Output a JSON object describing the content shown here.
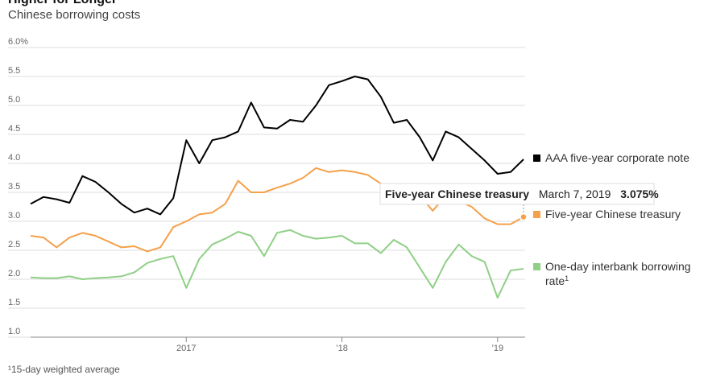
{
  "header": {
    "title": "Higher for Longer",
    "subtitle": "Chinese borrowing costs",
    "footnote": "¹15-day weighted average"
  },
  "tooltip": {
    "series": "Five-year Chinese treasury",
    "date": "March 7, 2019",
    "value": "3.075%"
  },
  "colors": {
    "aaa": "#000000",
    "treasury": "#f5a04a",
    "interbank": "#8fcf86",
    "grid": "#dddddd",
    "axis": "#888888"
  },
  "chart_data": {
    "type": "line",
    "title": "Higher for Longer",
    "subtitle": "Chinese borrowing costs",
    "xlabel": "",
    "ylabel": "",
    "x_range": [
      "2016-01",
      "2019-03"
    ],
    "ylim": [
      1.0,
      6.0
    ],
    "y_ticks": [
      1.0,
      1.5,
      2.0,
      2.5,
      3.0,
      3.5,
      4.0,
      4.5,
      5.0,
      5.5,
      6.0
    ],
    "y_tick_labels": [
      "1.0",
      "1.5",
      "2.0",
      "2.5",
      "3.0",
      "3.5",
      "4.0",
      "4.5",
      "5.0",
      "5.5",
      "6.0%"
    ],
    "x_ticks": [
      {
        "date": "2017-01",
        "label": "2017"
      },
      {
        "date": "2018-01",
        "label": "’18"
      },
      {
        "date": "2019-01",
        "label": "’19"
      }
    ],
    "grid": true,
    "legend_position": "right",
    "series": [
      {
        "name": "AAA five-year corporate note",
        "color": "#000000",
        "points": [
          [
            "2016-01",
            3.3
          ],
          [
            "2016-02",
            3.42
          ],
          [
            "2016-03",
            3.38
          ],
          [
            "2016-04",
            3.32
          ],
          [
            "2016-05",
            3.78
          ],
          [
            "2016-06",
            3.68
          ],
          [
            "2016-07",
            3.5
          ],
          [
            "2016-08",
            3.3
          ],
          [
            "2016-09",
            3.15
          ],
          [
            "2016-10",
            3.22
          ],
          [
            "2016-11",
            3.12
          ],
          [
            "2016-12",
            3.4
          ],
          [
            "2017-01",
            4.4
          ],
          [
            "2017-02",
            4.0
          ],
          [
            "2017-03",
            4.4
          ],
          [
            "2017-04",
            4.45
          ],
          [
            "2017-05",
            4.55
          ],
          [
            "2017-06",
            5.05
          ],
          [
            "2017-07",
            4.62
          ],
          [
            "2017-08",
            4.6
          ],
          [
            "2017-09",
            4.75
          ],
          [
            "2017-10",
            4.72
          ],
          [
            "2017-11",
            5.0
          ],
          [
            "2017-12",
            5.35
          ],
          [
            "2018-01",
            5.42
          ],
          [
            "2018-02",
            5.5
          ],
          [
            "2018-03",
            5.45
          ],
          [
            "2018-04",
            5.15
          ],
          [
            "2018-05",
            4.7
          ],
          [
            "2018-06",
            4.75
          ],
          [
            "2018-07",
            4.45
          ],
          [
            "2018-08",
            4.05
          ],
          [
            "2018-09",
            4.55
          ],
          [
            "2018-10",
            4.45
          ],
          [
            "2018-11",
            4.25
          ],
          [
            "2018-12",
            4.05
          ],
          [
            "2019-01",
            3.82
          ],
          [
            "2019-02",
            3.85
          ],
          [
            "2019-03",
            4.07
          ]
        ]
      },
      {
        "name": "Five-year Chinese treasury",
        "color": "#f5a04a",
        "points": [
          [
            "2016-01",
            2.75
          ],
          [
            "2016-02",
            2.72
          ],
          [
            "2016-03",
            2.55
          ],
          [
            "2016-04",
            2.72
          ],
          [
            "2016-05",
            2.8
          ],
          [
            "2016-06",
            2.75
          ],
          [
            "2016-07",
            2.65
          ],
          [
            "2016-08",
            2.55
          ],
          [
            "2016-09",
            2.57
          ],
          [
            "2016-10",
            2.48
          ],
          [
            "2016-11",
            2.55
          ],
          [
            "2016-12",
            2.9
          ],
          [
            "2017-01",
            3.0
          ],
          [
            "2017-02",
            3.12
          ],
          [
            "2017-03",
            3.15
          ],
          [
            "2017-04",
            3.3
          ],
          [
            "2017-05",
            3.7
          ],
          [
            "2017-06",
            3.5
          ],
          [
            "2017-07",
            3.5
          ],
          [
            "2017-08",
            3.58
          ],
          [
            "2017-09",
            3.65
          ],
          [
            "2017-10",
            3.75
          ],
          [
            "2017-11",
            3.92
          ],
          [
            "2017-12",
            3.85
          ],
          [
            "2018-01",
            3.88
          ],
          [
            "2018-02",
            3.85
          ],
          [
            "2018-03",
            3.8
          ],
          [
            "2018-04",
            3.65
          ],
          [
            "2018-05",
            3.3
          ],
          [
            "2018-06",
            3.35
          ],
          [
            "2018-07",
            3.45
          ],
          [
            "2018-08",
            3.18
          ],
          [
            "2018-09",
            3.45
          ],
          [
            "2018-10",
            3.35
          ],
          [
            "2018-11",
            3.25
          ],
          [
            "2018-12",
            3.05
          ],
          [
            "2019-01",
            2.95
          ],
          [
            "2019-02",
            2.95
          ],
          [
            "2019-03",
            3.075
          ]
        ]
      },
      {
        "name": "One-day interbank borrowing rate¹",
        "color": "#8fcf86",
        "points": [
          [
            "2016-01",
            2.03
          ],
          [
            "2016-02",
            2.02
          ],
          [
            "2016-03",
            2.02
          ],
          [
            "2016-04",
            2.05
          ],
          [
            "2016-05",
            2.0
          ],
          [
            "2016-06",
            2.02
          ],
          [
            "2016-07",
            2.03
          ],
          [
            "2016-08",
            2.05
          ],
          [
            "2016-09",
            2.12
          ],
          [
            "2016-10",
            2.28
          ],
          [
            "2016-11",
            2.35
          ],
          [
            "2016-12",
            2.4
          ],
          [
            "2017-01",
            1.85
          ],
          [
            "2017-02",
            2.35
          ],
          [
            "2017-03",
            2.6
          ],
          [
            "2017-04",
            2.7
          ],
          [
            "2017-05",
            2.82
          ],
          [
            "2017-06",
            2.75
          ],
          [
            "2017-07",
            2.4
          ],
          [
            "2017-08",
            2.8
          ],
          [
            "2017-09",
            2.85
          ],
          [
            "2017-10",
            2.75
          ],
          [
            "2017-11",
            2.7
          ],
          [
            "2017-12",
            2.72
          ],
          [
            "2018-01",
            2.75
          ],
          [
            "2018-02",
            2.62
          ],
          [
            "2018-03",
            2.62
          ],
          [
            "2018-04",
            2.45
          ],
          [
            "2018-05",
            2.68
          ],
          [
            "2018-06",
            2.55
          ],
          [
            "2018-07",
            2.2
          ],
          [
            "2018-08",
            1.85
          ],
          [
            "2018-09",
            2.3
          ],
          [
            "2018-10",
            2.6
          ],
          [
            "2018-11",
            2.4
          ],
          [
            "2018-12",
            2.3
          ],
          [
            "2019-01",
            1.68
          ],
          [
            "2019-02",
            2.15
          ],
          [
            "2019-03",
            2.18
          ]
        ]
      }
    ]
  }
}
